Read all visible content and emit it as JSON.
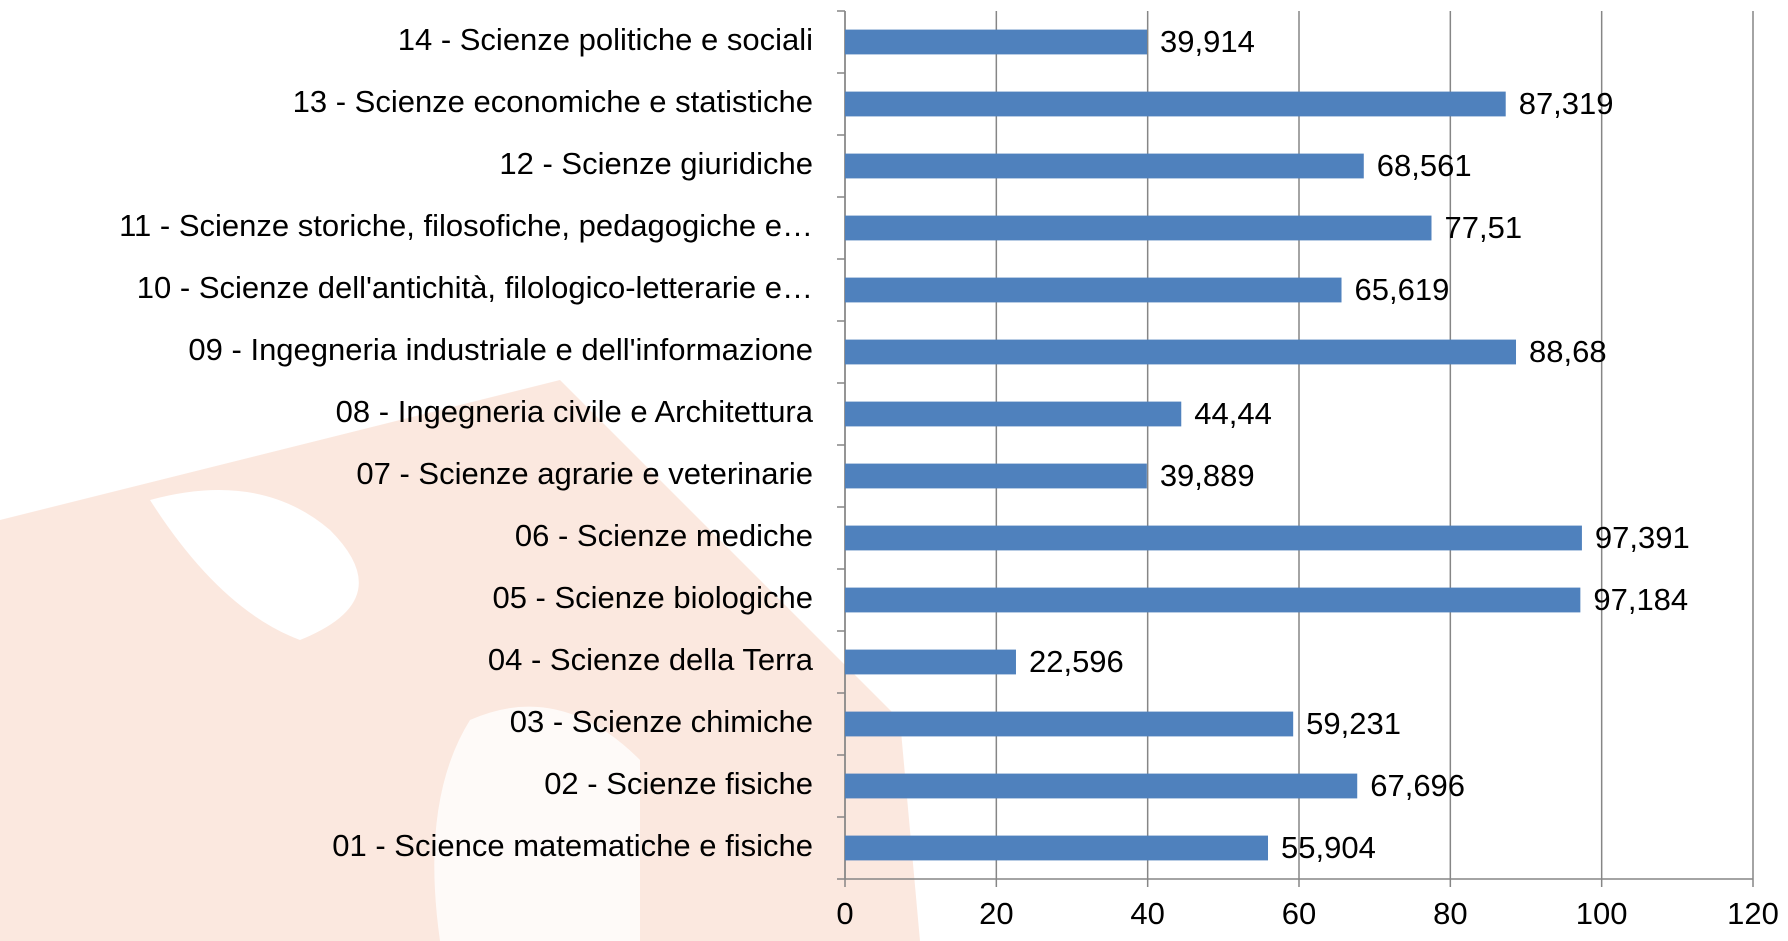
{
  "chart_data": {
    "type": "bar",
    "orientation": "horizontal",
    "categories": [
      "01 - Science matematiche e fisiche",
      "02 - Scienze fisiche",
      "03 - Scienze chimiche",
      "04 - Scienze della Terra",
      "05 - Scienze biologiche",
      "06 - Scienze mediche",
      "07 - Scienze agrarie e veterinarie",
      "08 - Ingegneria civile e Architettura",
      "09 - Ingegneria industriale e dell'informazione",
      "10 - Scienze dell'antichità, filologico-letterarie e…",
      "11 - Scienze storiche, filosofiche, pedagogiche e…",
      "12 - Scienze giuridiche",
      "13 - Scienze economiche e statistiche",
      "14 - Scienze politiche e sociali"
    ],
    "values": [
      55.904,
      67.696,
      59.231,
      22.596,
      97.184,
      97.391,
      39.889,
      44.44,
      88.68,
      65.619,
      77.51,
      68.561,
      87.319,
      39.914
    ],
    "value_labels": [
      "55,904",
      "67,696",
      "59,231",
      "22,596",
      "97,184",
      "97,391",
      "39,889",
      "44,44",
      "88,68",
      "65,619",
      "77,51",
      "68,561",
      "87,319",
      "39,914"
    ],
    "color": "#4f81bd",
    "xlim": [
      0,
      120
    ],
    "xticks": [
      0,
      20,
      40,
      60,
      80,
      100,
      120
    ],
    "grid": true
  }
}
